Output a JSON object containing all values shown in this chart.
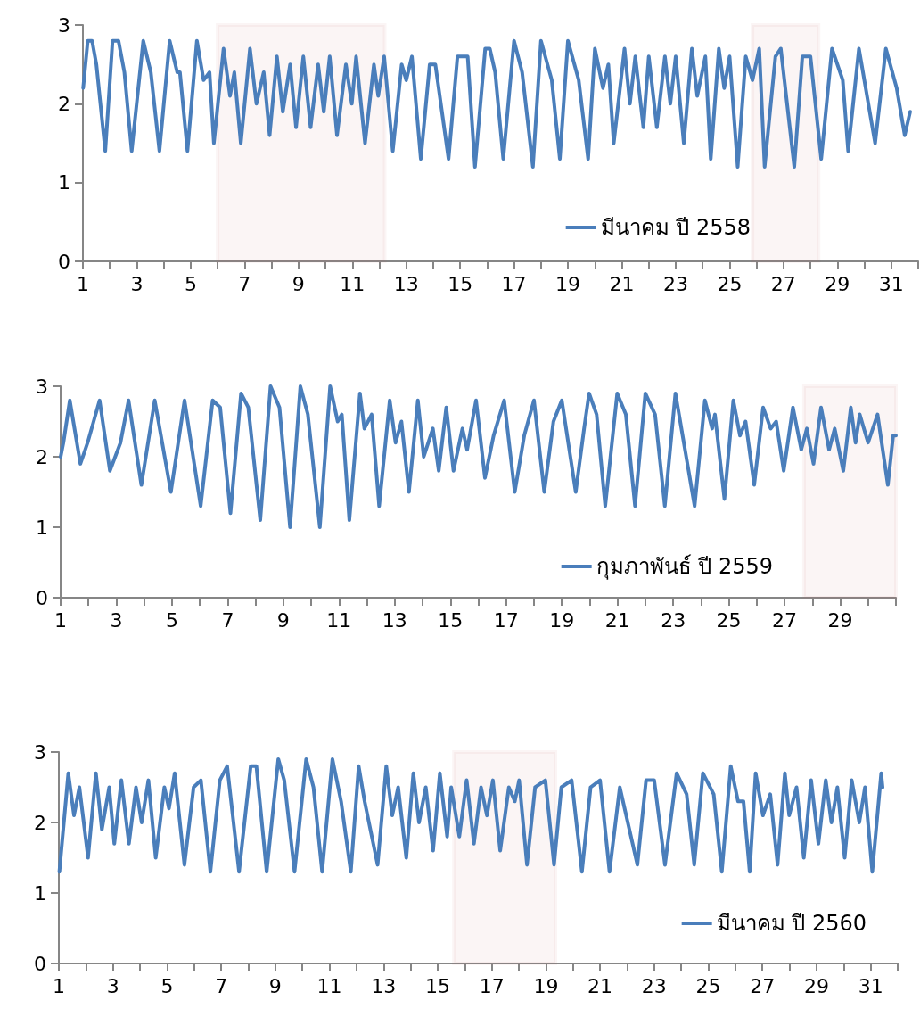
{
  "chart_data": [
    {
      "type": "line",
      "legend": "bottom right",
      "grid": false,
      "marker": "none",
      "line_style": "solid",
      "series": [
        {
          "name": "มีนาคม ปี 2558",
          "color": "#4a7ebb",
          "x": [
            1.01,
            1.18,
            1.34,
            1.5,
            1.83,
            2.1,
            2.32,
            2.54,
            2.81,
            3.24,
            3.52,
            3.84,
            4.22,
            4.5,
            4.6,
            4.88,
            5.23,
            5.48,
            5.7,
            5.86,
            6.22,
            6.46,
            6.62,
            6.86,
            7.2,
            7.44,
            7.71,
            7.93,
            8.2,
            8.42,
            8.69,
            8.91,
            9.18,
            9.45,
            9.73,
            9.94,
            10.16,
            10.43,
            10.76,
            10.98,
            11.14,
            11.47,
            11.8,
            11.96,
            12.18,
            12.5,
            12.83,
            13.0,
            13.21,
            13.54,
            13.87,
            14.08,
            14.57,
            14.9,
            15.28,
            15.55,
            15.93,
            16.1,
            16.3,
            16.6,
            17.0,
            17.3,
            17.7,
            18.0,
            18.4,
            18.7,
            19.0,
            19.4,
            19.75,
            20.0,
            20.3,
            20.5,
            20.7,
            21.1,
            21.3,
            21.5,
            21.8,
            22.0,
            22.3,
            22.6,
            22.8,
            23.0,
            23.3,
            23.6,
            23.8,
            24.1,
            24.3,
            24.6,
            24.8,
            25.0,
            25.3,
            25.6,
            25.85,
            26.1,
            26.3,
            26.7,
            26.9,
            27.4,
            27.7,
            28.0,
            28.4,
            28.8,
            29.2,
            29.4,
            29.8,
            30.0,
            30.4,
            30.8,
            31.2,
            31.5,
            31.7
          ],
          "values": [
            2.2,
            2.8,
            2.8,
            2.5,
            1.4,
            2.8,
            2.8,
            2.4,
            1.4,
            2.8,
            2.4,
            1.4,
            2.8,
            2.4,
            2.4,
            1.4,
            2.8,
            2.3,
            2.4,
            1.5,
            2.7,
            2.1,
            2.4,
            1.5,
            2.7,
            2.0,
            2.4,
            1.6,
            2.6,
            1.9,
            2.5,
            1.7,
            2.6,
            1.7,
            2.5,
            1.9,
            2.6,
            1.6,
            2.5,
            2.0,
            2.6,
            1.5,
            2.5,
            2.1,
            2.6,
            1.4,
            2.5,
            2.3,
            2.6,
            1.3,
            2.5,
            2.5,
            1.3,
            2.6,
            2.6,
            1.2,
            2.7,
            2.7,
            2.4,
            1.3,
            2.8,
            2.4,
            1.2,
            2.8,
            2.3,
            1.3,
            2.8,
            2.3,
            1.3,
            2.7,
            2.2,
            2.5,
            1.5,
            2.7,
            2.0,
            2.6,
            1.7,
            2.6,
            1.7,
            2.6,
            2.0,
            2.6,
            1.5,
            2.7,
            2.1,
            2.6,
            1.3,
            2.7,
            2.2,
            2.6,
            1.2,
            2.6,
            2.3,
            2.7,
            1.2,
            2.6,
            2.7,
            1.2,
            2.6,
            2.6,
            1.3,
            2.7,
            2.3,
            1.4,
            2.7,
            2.3,
            1.5,
            2.7,
            2.2,
            1.6,
            1.9
          ]
        }
      ],
      "xlim": [
        1,
        32
      ],
      "xticks": [
        1,
        {
          "value": 2,
          "label": null
        },
        3,
        {
          "value": 4,
          "label": null
        },
        5,
        {
          "value": 6,
          "label": null
        },
        7,
        {
          "value": 8,
          "label": null
        },
        9,
        {
          "value": 10,
          "label": null
        },
        11,
        {
          "value": 12,
          "label": null
        },
        13,
        {
          "value": 14,
          "label": null
        },
        15,
        {
          "value": 16,
          "label": null
        },
        17,
        {
          "value": 18,
          "label": null
        },
        19,
        {
          "value": 20,
          "label": null
        },
        21,
        {
          "value": 22,
          "label": null
        },
        23,
        {
          "value": 24,
          "label": null
        },
        25,
        {
          "value": 26,
          "label": null
        },
        27,
        {
          "value": 28,
          "label": null
        },
        29,
        {
          "value": 30,
          "label": null
        },
        31,
        {
          "value": 32,
          "label": null
        }
      ],
      "ylim": [
        0,
        3
      ],
      "yticks": [
        0,
        1,
        2,
        3
      ],
      "bands": [
        {
          "axis": "x",
          "from": 6.0,
          "to": 12.2,
          "color": "#c0504d"
        },
        {
          "axis": "x",
          "from": 25.85,
          "to": 28.3,
          "color": "#c0504d"
        }
      ]
    },
    {
      "type": "line",
      "legend": "bottom right",
      "grid": false,
      "marker": "none",
      "line_style": "solid",
      "series": [
        {
          "name": "กุมภาพันธ์ ปี 2559",
          "color": "#4a7ebb",
          "x": [
            1.0,
            1.1,
            1.33,
            1.71,
            1.97,
            2.4,
            2.77,
            3.15,
            3.44,
            3.9,
            4.38,
            4.96,
            5.45,
            6.03,
            6.46,
            6.73,
            7.1,
            7.48,
            7.74,
            8.17,
            8.54,
            8.86,
            9.24,
            9.61,
            9.88,
            10.31,
            10.68,
            10.95,
            11.1,
            11.37,
            11.75,
            11.91,
            12.17,
            12.44,
            12.82,
            13.03,
            13.24,
            13.51,
            13.83,
            14.04,
            14.37,
            14.58,
            14.85,
            15.11,
            15.43,
            15.6,
            15.92,
            16.24,
            16.55,
            16.93,
            17.31,
            17.65,
            18.0,
            18.37,
            18.7,
            19.0,
            19.5,
            19.8,
            19.98,
            20.25,
            20.56,
            20.99,
            21.3,
            21.63,
            22.0,
            22.35,
            22.7,
            23.08,
            23.77,
            24.14,
            24.4,
            24.5,
            24.84,
            25.16,
            25.4,
            25.6,
            25.91,
            26.23,
            26.5,
            26.7,
            26.97,
            27.3,
            27.6,
            27.8,
            28.04,
            28.31,
            28.6,
            28.8,
            29.11,
            29.38,
            29.55,
            29.7,
            30.0,
            30.34,
            30.71,
            30.9,
            31.0
          ],
          "values": [
            2.0,
            2.2,
            2.8,
            1.9,
            2.2,
            2.8,
            1.8,
            2.2,
            2.8,
            1.6,
            2.8,
            1.5,
            2.8,
            1.3,
            2.8,
            2.7,
            1.2,
            2.9,
            2.7,
            1.1,
            3.0,
            2.7,
            1.0,
            3.0,
            2.6,
            1.0,
            3.0,
            2.5,
            2.6,
            1.1,
            2.9,
            2.4,
            2.6,
            1.3,
            2.8,
            2.2,
            2.5,
            1.5,
            2.8,
            2.0,
            2.4,
            1.8,
            2.7,
            1.8,
            2.4,
            2.1,
            2.8,
            1.7,
            2.3,
            2.8,
            1.5,
            2.3,
            2.8,
            1.5,
            2.5,
            2.8,
            1.5,
            2.4,
            2.9,
            2.6,
            1.3,
            2.9,
            2.6,
            1.3,
            2.9,
            2.6,
            1.3,
            2.9,
            1.3,
            2.8,
            2.4,
            2.6,
            1.4,
            2.8,
            2.3,
            2.5,
            1.6,
            2.7,
            2.4,
            2.5,
            1.8,
            2.7,
            2.1,
            2.4,
            1.9,
            2.7,
            2.1,
            2.4,
            1.8,
            2.7,
            2.2,
            2.6,
            2.2,
            2.6,
            1.6,
            2.3,
            2.3
          ]
        }
      ],
      "xlim": [
        1,
        31
      ],
      "xticks": [
        1,
        {
          "value": 2,
          "label": null
        },
        3,
        {
          "value": 4,
          "label": null
        },
        5,
        {
          "value": 6,
          "label": null
        },
        7,
        {
          "value": 8,
          "label": null
        },
        9,
        {
          "value": 10,
          "label": null
        },
        11,
        {
          "value": 12,
          "label": null
        },
        13,
        {
          "value": 14,
          "label": null
        },
        15,
        {
          "value": 16,
          "label": null
        },
        17,
        {
          "value": 18,
          "label": null
        },
        19,
        {
          "value": 20,
          "label": null
        },
        21,
        {
          "value": 22,
          "label": null
        },
        23,
        {
          "value": 24,
          "label": null
        },
        25,
        {
          "value": 26,
          "label": null
        },
        27,
        {
          "value": 28,
          "label": null
        },
        29,
        {
          "value": 30,
          "label": null
        },
        {
          "value": 31,
          "label": null
        }
      ],
      "ylim": [
        0,
        3
      ],
      "yticks": [
        0,
        1,
        2,
        3
      ],
      "bands": [
        {
          "axis": "x",
          "from": 27.7,
          "to": 31,
          "color": "#c0504d"
        }
      ]
    },
    {
      "type": "line",
      "legend": "bottom right",
      "grid": false,
      "marker": "none",
      "line_style": "solid",
      "series": [
        {
          "name": "มีนาคม ปี 2560",
          "color": "#4a7ebb",
          "x": [
            1.02,
            1.35,
            1.56,
            1.76,
            2.08,
            2.37,
            2.59,
            2.86,
            3.05,
            3.31,
            3.59,
            3.85,
            4.06,
            4.31,
            4.58,
            4.9,
            5.07,
            5.28,
            5.64,
            5.98,
            6.25,
            6.6,
            6.95,
            7.22,
            7.66,
            8.09,
            8.3,
            8.68,
            9.11,
            9.33,
            9.71,
            10.14,
            10.41,
            10.73,
            11.11,
            11.43,
            11.79,
            12.08,
            12.3,
            12.78,
            13.1,
            13.32,
            13.54,
            13.84,
            14.1,
            14.31,
            14.56,
            14.83,
            15.08,
            15.35,
            15.5,
            15.8,
            16.07,
            16.34,
            16.6,
            16.82,
            17.04,
            17.31,
            17.63,
            17.85,
            18.01,
            18.3,
            18.6,
            18.98,
            19.3,
            19.57,
            19.95,
            20.33,
            20.65,
            21.0,
            21.35,
            21.73,
            22.38,
            22.7,
            23.0,
            23.4,
            23.83,
            24.2,
            24.48,
            24.8,
            25.2,
            25.5,
            25.83,
            26.1,
            26.3,
            26.53,
            26.75,
            27.02,
            27.29,
            27.56,
            27.83,
            27.99,
            28.26,
            28.53,
            28.8,
            29.07,
            29.34,
            29.55,
            29.77,
            30.04,
            30.3,
            30.58,
            30.79,
            31.06,
            31.39,
            31.44
          ],
          "values": [
            1.3,
            2.7,
            2.1,
            2.5,
            1.5,
            2.7,
            1.9,
            2.5,
            1.7,
            2.6,
            1.7,
            2.5,
            2.0,
            2.6,
            1.5,
            2.5,
            2.2,
            2.7,
            1.4,
            2.5,
            2.6,
            1.3,
            2.6,
            2.8,
            1.3,
            2.8,
            2.8,
            1.3,
            2.9,
            2.6,
            1.3,
            2.9,
            2.5,
            1.3,
            2.9,
            2.3,
            1.3,
            2.8,
            2.3,
            1.4,
            2.8,
            2.1,
            2.5,
            1.5,
            2.7,
            2.0,
            2.5,
            1.6,
            2.7,
            1.8,
            2.5,
            1.8,
            2.6,
            1.7,
            2.5,
            2.1,
            2.6,
            1.6,
            2.5,
            2.3,
            2.6,
            1.4,
            2.5,
            2.6,
            1.4,
            2.5,
            2.6,
            1.3,
            2.5,
            2.6,
            1.3,
            2.5,
            1.4,
            2.6,
            2.6,
            1.4,
            2.7,
            2.4,
            1.4,
            2.7,
            2.4,
            1.3,
            2.8,
            2.3,
            2.3,
            1.3,
            2.7,
            2.1,
            2.4,
            1.4,
            2.7,
            2.1,
            2.5,
            1.5,
            2.6,
            1.7,
            2.6,
            2.0,
            2.5,
            1.5,
            2.6,
            2.0,
            2.5,
            1.3,
            2.7,
            2.5
          ]
        }
      ],
      "xlim": [
        1,
        32
      ],
      "xticks": [
        1,
        {
          "value": 2,
          "label": null
        },
        3,
        {
          "value": 4,
          "label": null
        },
        5,
        {
          "value": 6,
          "label": null
        },
        7,
        {
          "value": 8,
          "label": null
        },
        9,
        {
          "value": 10,
          "label": null
        },
        11,
        {
          "value": 12,
          "label": null
        },
        13,
        {
          "value": 14,
          "label": null
        },
        15,
        {
          "value": 16,
          "label": null
        },
        17,
        {
          "value": 18,
          "label": null
        },
        19,
        {
          "value": 20,
          "label": null
        },
        21,
        {
          "value": 22,
          "label": null
        },
        23,
        {
          "value": 24,
          "label": null
        },
        25,
        {
          "value": 26,
          "label": null
        },
        27,
        {
          "value": 28,
          "label": null
        },
        29,
        {
          "value": 30,
          "label": null
        },
        31,
        {
          "value": 32,
          "label": null
        }
      ],
      "ylim": [
        0,
        3
      ],
      "yticks": [
        0,
        1,
        2,
        3
      ],
      "bands": [
        {
          "axis": "x",
          "from": 15.6,
          "to": 19.35,
          "color": "#c0504d"
        }
      ]
    }
  ]
}
